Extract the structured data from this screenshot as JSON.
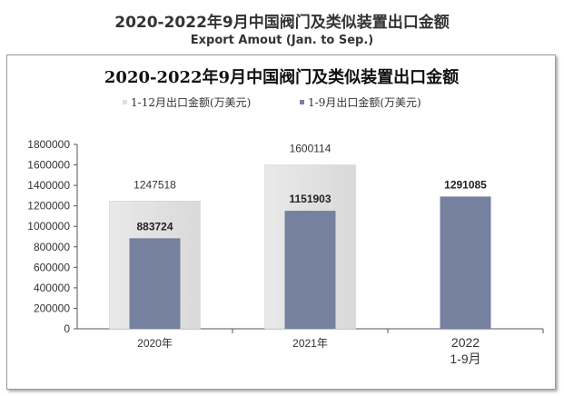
{
  "header": {
    "title": "2020-2022年9月中国阀门及类似装置出口金额",
    "subtitle": "Export Amout (Jan. to Sep.)"
  },
  "chart_data": {
    "type": "bar",
    "title": "2020-2022年9月中国阀门及类似装置出口金额",
    "categories": [
      "2020年",
      "2021年",
      "2022\n1-9月"
    ],
    "series": [
      {
        "name": "1-12月出口金额(万美元)",
        "values": [
          1247518,
          1600114,
          null
        ],
        "color": "#e0e0e0"
      },
      {
        "name": "1-9月出口金额(万美元)",
        "values": [
          883724,
          1151903,
          1291085
        ],
        "color": "#76819f"
      }
    ],
    "ylim": [
      0,
      1800000
    ],
    "yticks": [
      "0",
      "200000",
      "400000",
      "600000",
      "800000",
      "1000000",
      "1200000",
      "1400000",
      "1600000",
      "1800000"
    ],
    "grid": false,
    "legend_position": "top"
  }
}
